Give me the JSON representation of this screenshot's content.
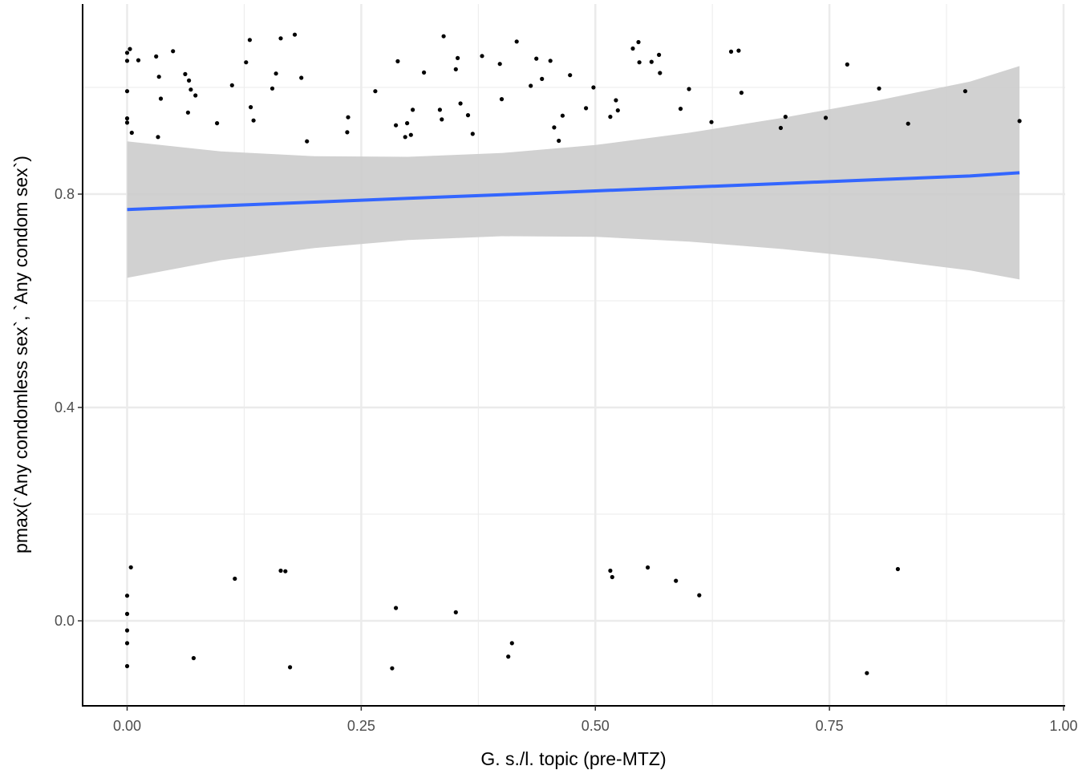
{
  "chart_data": {
    "type": "scatter",
    "title": "",
    "xlabel": "G. s./l. topic (pre-MTZ)",
    "ylabel": "pmax(`Any condomless sex`, `Any condom sex`)",
    "xlim": [
      -0.024,
      1.0
    ],
    "ylim": [
      -0.16,
      1.16
    ],
    "x_ticks": [
      0.0,
      0.25,
      0.5,
      0.75,
      1.0
    ],
    "x_tick_labels": [
      "0.00",
      "0.25",
      "0.50",
      "0.75",
      "1.00"
    ],
    "y_ticks": [
      0.0,
      0.4,
      0.8
    ],
    "y_tick_labels": [
      "0.0",
      "0.4",
      "0.8"
    ],
    "grid": true,
    "colors": {
      "points": "#000000",
      "fit_line": "#3366ff",
      "ribbon": "#cccccc",
      "grid": "#ebebeb",
      "axis": "#000000"
    },
    "points": [
      [
        0.0,
        1.05
      ],
      [
        0.0,
        1.065
      ],
      [
        0.003,
        1.072
      ],
      [
        0.0,
        0.993
      ],
      [
        0.0,
        0.942
      ],
      [
        0.0,
        0.934
      ],
      [
        0.004,
        0.1003
      ],
      [
        0.005,
        0.915
      ],
      [
        0.012,
        1.051
      ],
      [
        0.031,
        1.058
      ],
      [
        0.034,
        1.02
      ],
      [
        0.033,
        0.907
      ],
      [
        0.036,
        0.979
      ],
      [
        0.049,
        1.068
      ],
      [
        0.062,
        1.025
      ],
      [
        0.065,
        0.953
      ],
      [
        0.066,
        1.013
      ],
      [
        0.068,
        0.996
      ],
      [
        0.073,
        0.985
      ],
      [
        0.096,
        0.933
      ],
      [
        0.112,
        1.004
      ],
      [
        0.127,
        1.047
      ],
      [
        0.131,
        1.089
      ],
      [
        0.132,
        0.963
      ],
      [
        0.135,
        0.938
      ],
      [
        0.155,
        0.998
      ],
      [
        0.159,
        1.026
      ],
      [
        0.164,
        1.092
      ],
      [
        0.179,
        1.099
      ],
      [
        0.186,
        1.018
      ],
      [
        0.192,
        0.899
      ],
      [
        0.235,
        0.916
      ],
      [
        0.236,
        0.944
      ],
      [
        0.265,
        0.993
      ],
      [
        0.287,
        0.929
      ],
      [
        0.289,
        1.049
      ],
      [
        0.297,
        0.907
      ],
      [
        0.299,
        0.933
      ],
      [
        0.303,
        0.911
      ],
      [
        0.305,
        0.958
      ],
      [
        0.317,
        1.028
      ],
      [
        0.334,
        0.958
      ],
      [
        0.336,
        0.94
      ],
      [
        0.338,
        1.096
      ],
      [
        0.351,
        1.034
      ],
      [
        0.353,
        1.055
      ],
      [
        0.356,
        0.97
      ],
      [
        0.364,
        0.948
      ],
      [
        0.369,
        0.913
      ],
      [
        0.379,
        1.059
      ],
      [
        0.398,
        1.044
      ],
      [
        0.4,
        0.978
      ],
      [
        0.416,
        1.086
      ],
      [
        0.431,
        1.003
      ],
      [
        0.437,
        1.054
      ],
      [
        0.443,
        1.016
      ],
      [
        0.452,
        1.05
      ],
      [
        0.456,
        0.925
      ],
      [
        0.461,
        0.9
      ],
      [
        0.465,
        0.947
      ],
      [
        0.473,
        1.023
      ],
      [
        0.49,
        0.961
      ],
      [
        0.498,
        1.0
      ],
      [
        0.516,
        0.945
      ],
      [
        0.522,
        0.976
      ],
      [
        0.524,
        0.957
      ],
      [
        0.54,
        1.073
      ],
      [
        0.546,
        1.085
      ],
      [
        0.547,
        1.047
      ],
      [
        0.56,
        1.048
      ],
      [
        0.568,
        1.061
      ],
      [
        0.569,
        1.027
      ],
      [
        0.591,
        0.96
      ],
      [
        0.6,
        0.997
      ],
      [
        0.624,
        0.935
      ],
      [
        0.645,
        1.067
      ],
      [
        0.653,
        1.069
      ],
      [
        0.656,
        0.99
      ],
      [
        0.698,
        0.924
      ],
      [
        0.703,
        0.945
      ],
      [
        0.746,
        0.943
      ],
      [
        0.769,
        1.043
      ],
      [
        0.803,
        0.998
      ],
      [
        0.834,
        0.932
      ],
      [
        0.895,
        0.993
      ],
      [
        0.953,
        0.937
      ],
      [
        0.0,
        0.047
      ],
      [
        0.0,
        0.013
      ],
      [
        0.0,
        -0.018
      ],
      [
        0.0,
        -0.042
      ],
      [
        0.0,
        -0.085
      ],
      [
        0.071,
        -0.07
      ],
      [
        0.115,
        0.079
      ],
      [
        0.164,
        0.094
      ],
      [
        0.169,
        0.093
      ],
      [
        0.174,
        -0.087
      ],
      [
        0.283,
        -0.089
      ],
      [
        0.287,
        0.024
      ],
      [
        0.351,
        0.016
      ],
      [
        0.407,
        -0.067
      ],
      [
        0.411,
        -0.042
      ],
      [
        0.516,
        0.094
      ],
      [
        0.518,
        0.082
      ],
      [
        0.556,
        0.1
      ],
      [
        0.586,
        0.075
      ],
      [
        0.611,
        0.048
      ],
      [
        0.79,
        -0.098
      ],
      [
        0.823,
        0.097
      ]
    ],
    "fit": {
      "method": "linear",
      "x": [
        0.0,
        0.1,
        0.2,
        0.3,
        0.4,
        0.5,
        0.6,
        0.7,
        0.8,
        0.9,
        0.953
      ],
      "y": [
        0.771,
        0.778,
        0.785,
        0.792,
        0.799,
        0.806,
        0.813,
        0.82,
        0.827,
        0.834,
        0.84
      ],
      "ymin": [
        0.643,
        0.676,
        0.699,
        0.714,
        0.721,
        0.72,
        0.711,
        0.697,
        0.679,
        0.657,
        0.64
      ],
      "ymax": [
        0.899,
        0.88,
        0.871,
        0.87,
        0.877,
        0.892,
        0.915,
        0.943,
        0.975,
        1.011,
        1.04
      ]
    }
  }
}
